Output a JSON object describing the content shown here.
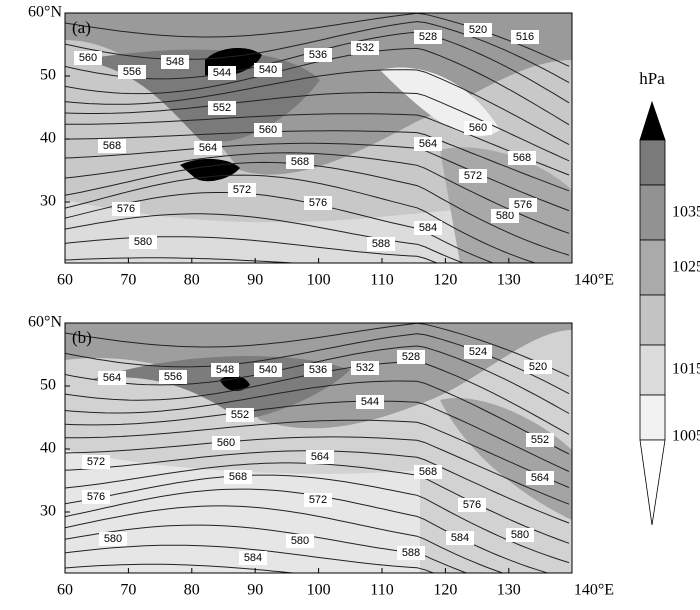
{
  "panels": [
    {
      "label": "(a)",
      "contour_labels": [
        560,
        556,
        548,
        544,
        540,
        536,
        532,
        528,
        520,
        516,
        552,
        560,
        564,
        568,
        568,
        572,
        576,
        576,
        580,
        588,
        584,
        580,
        576,
        572,
        568,
        564,
        560
      ]
    },
    {
      "label": "(b)",
      "contour_labels": [
        564,
        556,
        548,
        540,
        536,
        532,
        528,
        524,
        520,
        544,
        552,
        560,
        564,
        568,
        572,
        576,
        572,
        568,
        576,
        580,
        580,
        584,
        588,
        584,
        580,
        564,
        552
      ]
    }
  ],
  "y_axis": {
    "ticks": [
      "50",
      "40",
      "30"
    ],
    "top_label": "60°N"
  },
  "x_axis": {
    "ticks": [
      "60",
      "70",
      "80",
      "90",
      "100",
      "110",
      "120",
      "130"
    ],
    "end_label": "140°E"
  },
  "colorbar": {
    "unit": "hPa",
    "labels": [
      "1035",
      "1025",
      "1015",
      "1005"
    ]
  }
}
